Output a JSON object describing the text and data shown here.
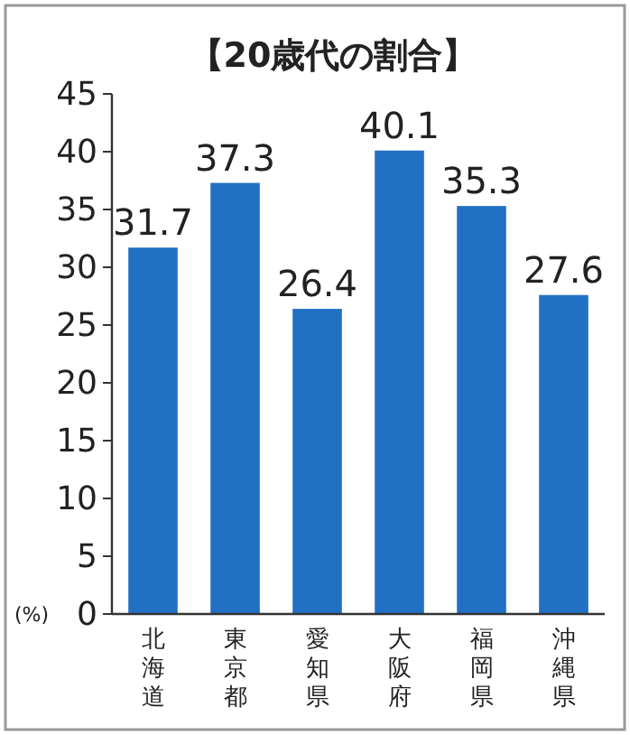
{
  "chart_data": {
    "type": "bar",
    "title": "【20歳代の割合】",
    "ylabel": "(%)",
    "categories": [
      "北海道",
      "東京都",
      "愛知県",
      "大阪府",
      "福岡県",
      "沖縄県"
    ],
    "values": [
      31.7,
      37.3,
      26.4,
      40.1,
      35.3,
      27.6
    ],
    "color": "#2170c4",
    "ylim": [
      0,
      45
    ],
    "yticks": [
      0,
      5,
      10,
      15,
      20,
      25,
      30,
      35,
      40,
      45
    ],
    "data_labels": true,
    "grid": false
  }
}
